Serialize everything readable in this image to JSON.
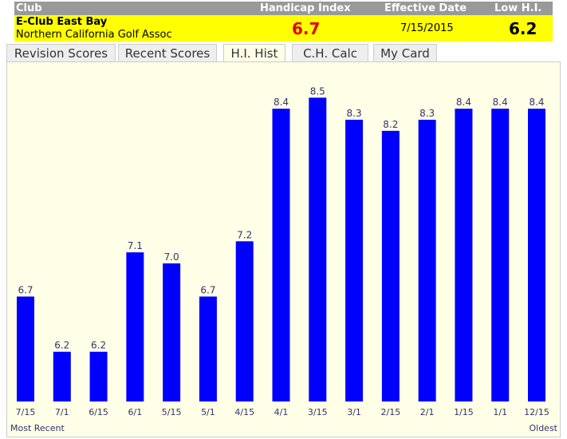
{
  "header": {
    "columns": [
      "Club",
      "Handicap Index",
      "Effective Date",
      "Low H.I."
    ],
    "club_name": "E-Club East Bay",
    "association": "Northern California Golf Assoc",
    "handicap_index": 6.7,
    "effective_date": "7/15/2015",
    "low_hi": 6.2
  },
  "tabs": [
    "Revision Scores",
    "Recent Scores",
    "H.I. Hist",
    "C.H. Calc",
    "My Card"
  ],
  "active_tab": 2,
  "chart_data": {
    "type": "bar",
    "categories": [
      "7/15",
      "7/1",
      "6/15",
      "6/1",
      "5/15",
      "5/1",
      "4/15",
      "4/1",
      "3/15",
      "3/1",
      "2/15",
      "2/1",
      "1/15",
      "1/1",
      "12/15"
    ],
    "values": [
      6.7,
      6.2,
      6.2,
      7.1,
      7.0,
      6.7,
      7.2,
      8.4,
      8.5,
      8.3,
      8.2,
      8.3,
      8.4,
      8.4,
      8.4
    ],
    "value_labels": [
      "6.7",
      "6.2",
      "6.2",
      "7.1",
      "7.0",
      "6.7",
      "7.2",
      "8.4",
      "8.5",
      "8.3",
      "8.2",
      "8.3",
      "8.4",
      "8.4",
      "8.4"
    ],
    "color": "#0000ff",
    "ylim": [
      5.75,
      8.77
    ],
    "start_label": "Most Recent",
    "end_label": "Oldest"
  }
}
